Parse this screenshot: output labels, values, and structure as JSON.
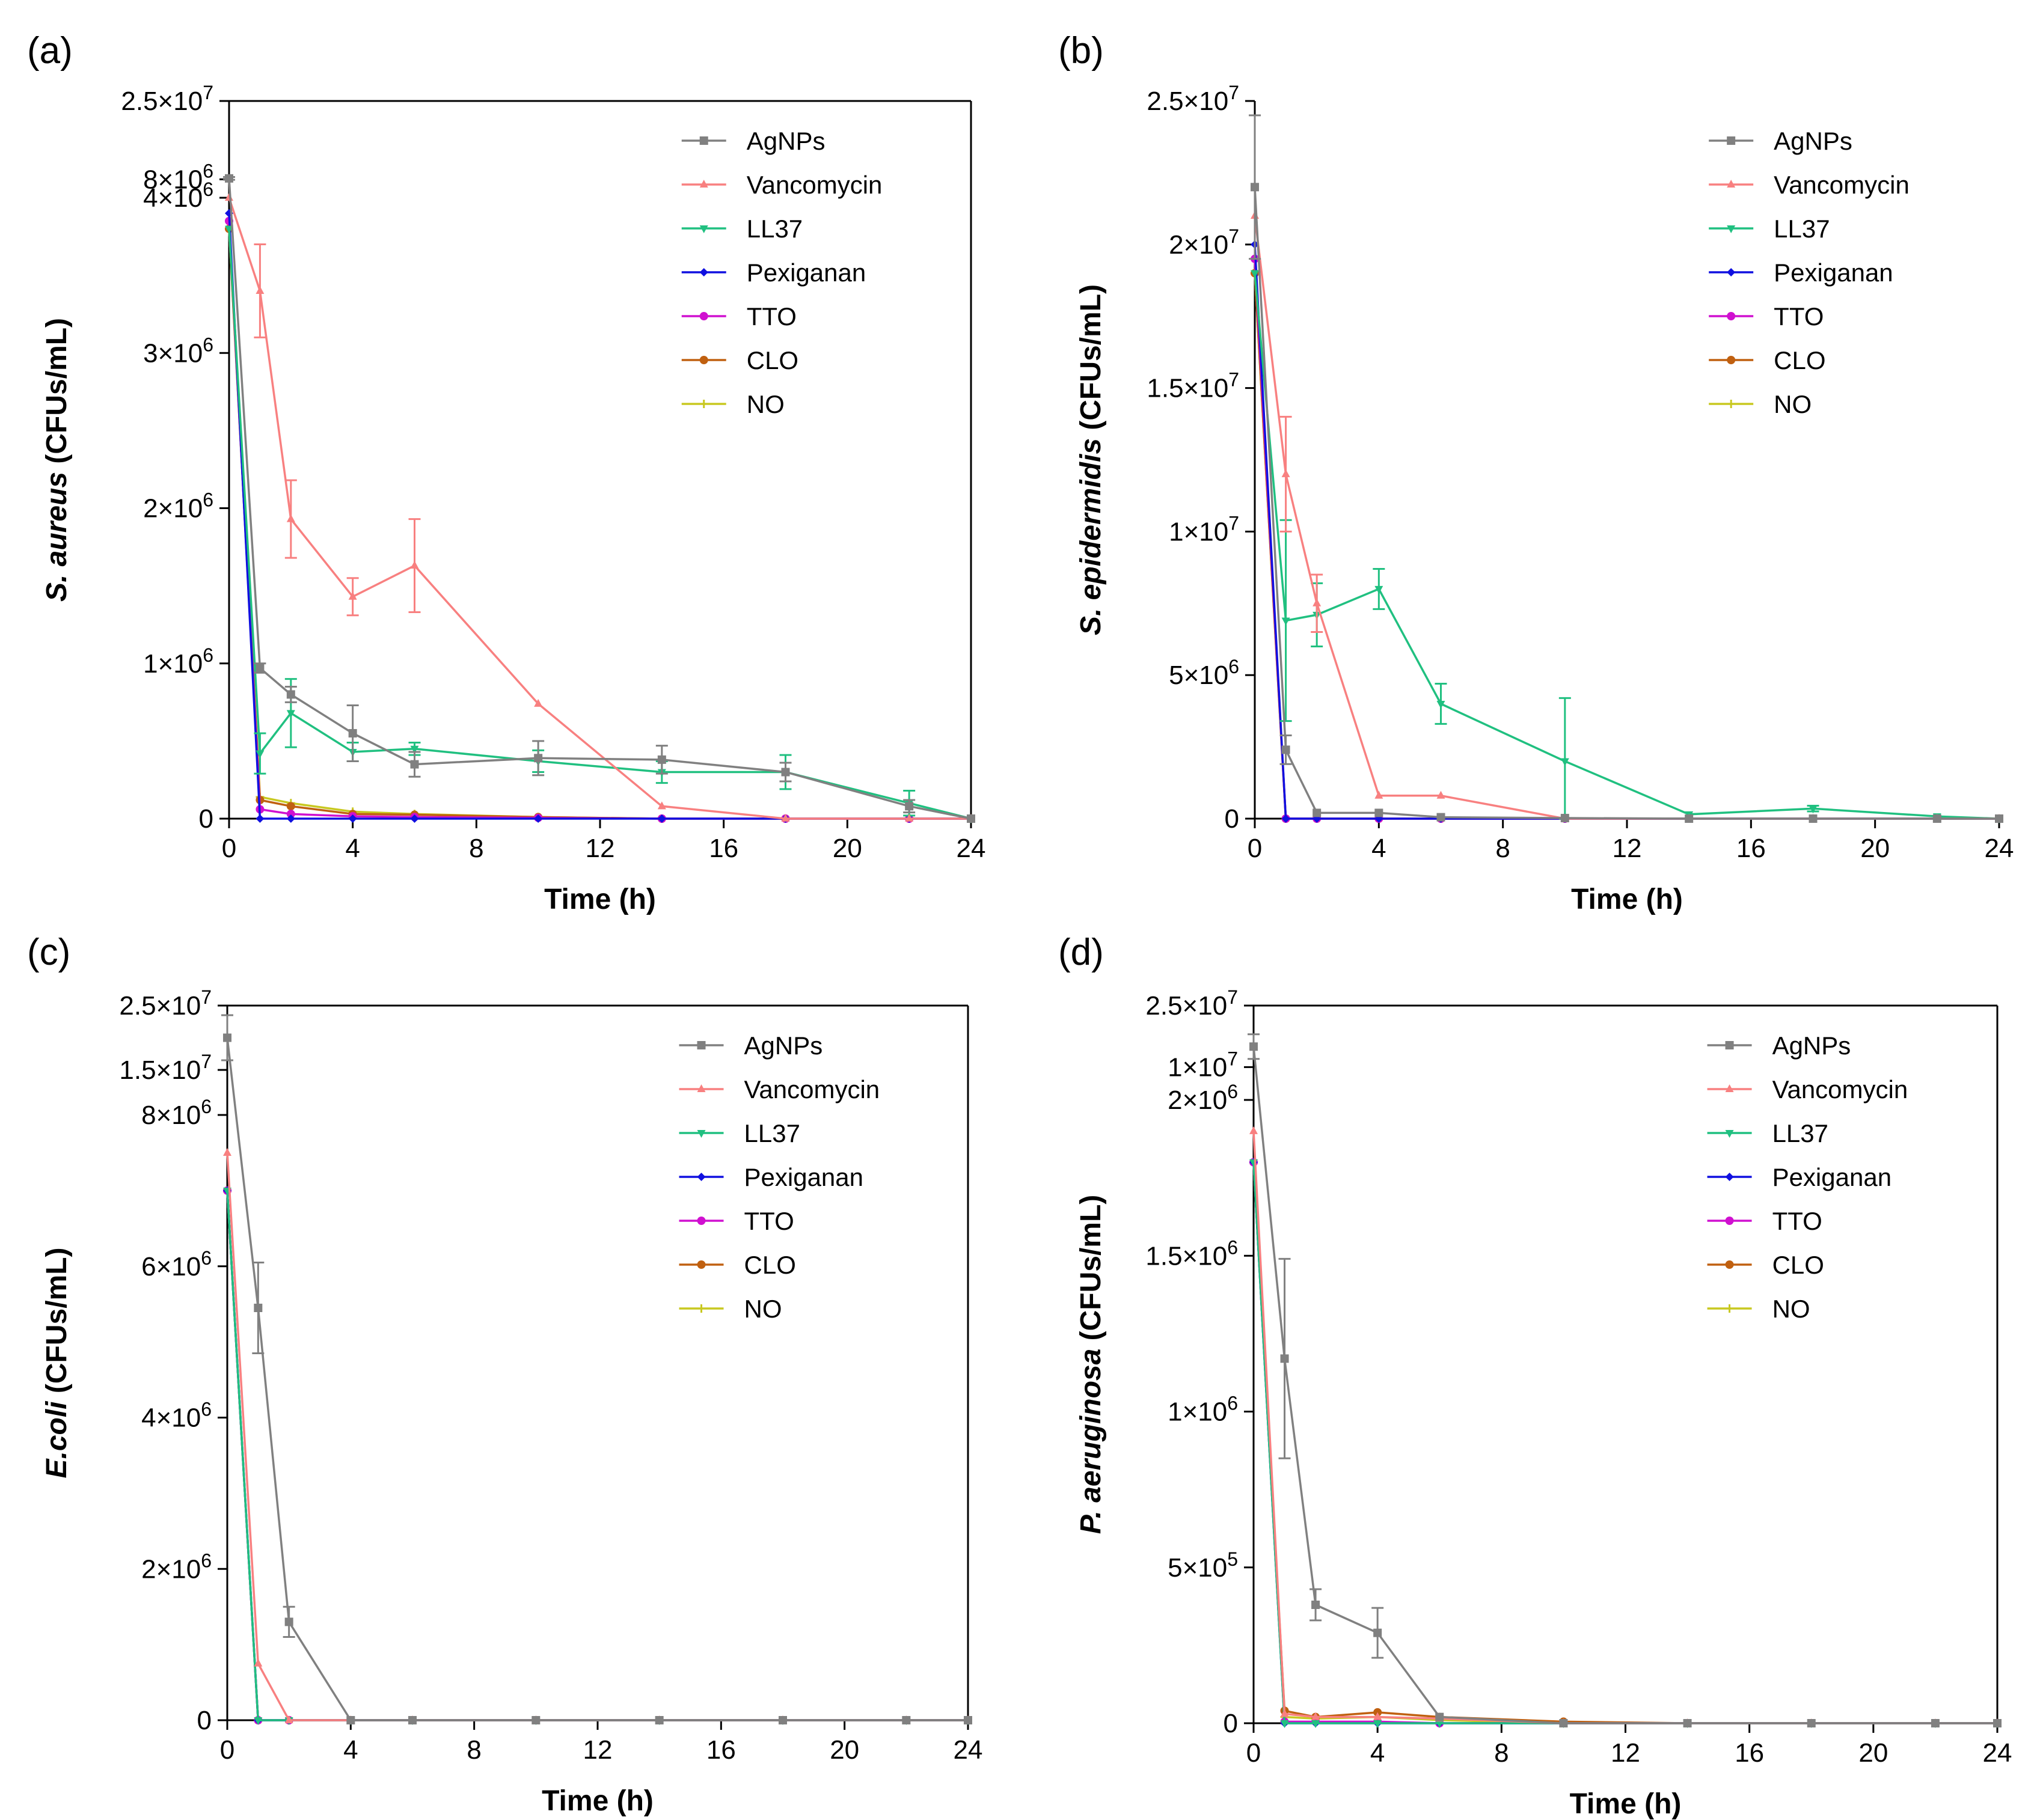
{
  "figure": {
    "series_names": [
      "AgNPs",
      "Vancomycin",
      "LL37",
      "Pexiganan",
      "TTO",
      "CLO",
      "NO"
    ],
    "series_colors": [
      "#808080",
      "#f88080",
      "#20c080",
      "#1010e0",
      "#d010d0",
      "#c06010",
      "#c8c820"
    ],
    "series_markers": [
      "square",
      "triangle",
      "triangle-down",
      "diamond",
      "circle",
      "circle",
      "star"
    ]
  },
  "chart_data": [
    {
      "panel": "(a)",
      "type": "line",
      "title": "",
      "xlabel": "Time (h)",
      "ylabel_italic": "S. aureus",
      "ylabel_rest": " (CFUs/mL)",
      "xlim": [
        0,
        24
      ],
      "xticks": [
        "0",
        "4",
        "8",
        "12",
        "16",
        "20",
        "24"
      ],
      "ylim": [
        0,
        4000000
      ],
      "break": {
        "upper_range": [
          4000000,
          25000000
        ],
        "upper_ticks": [
          {
            "mant": "8",
            "exp": "6",
            "value": 8000000
          },
          {
            "mant": "2.5",
            "exp": "7",
            "value": 25000000
          }
        ]
      },
      "yticks": [
        {
          "mant": "",
          "exp": "",
          "label": "0",
          "value": 0
        },
        {
          "mant": "1",
          "exp": "6",
          "value": 1000000
        },
        {
          "mant": "2",
          "exp": "6",
          "value": 2000000
        },
        {
          "mant": "3",
          "exp": "6",
          "value": 3000000
        },
        {
          "mant": "4",
          "exp": "6",
          "value": 4000000
        }
      ],
      "legend": "top-right",
      "series": [
        {
          "name": "AgNPs",
          "x": [
            0,
            1,
            2,
            4,
            6,
            10,
            14,
            18,
            22,
            24
          ],
          "y": [
            8200000,
            970000,
            800000,
            550000,
            350000,
            390000,
            380000,
            300000,
            80000,
            0
          ],
          "err": [
            300000,
            30000,
            50000,
            180000,
            80000,
            110000,
            90000,
            60000,
            40000,
            0
          ]
        },
        {
          "name": "Vancomycin",
          "x": [
            0,
            1,
            2,
            4,
            6,
            10,
            14,
            18,
            22,
            24
          ],
          "y": [
            4000000,
            3400000,
            1930000,
            1430000,
            1630000,
            740000,
            80000,
            0,
            0,
            0
          ],
          "err": [
            0,
            300000,
            250000,
            120000,
            300000,
            0,
            0,
            0,
            0,
            0
          ]
        },
        {
          "name": "LL37",
          "x": [
            0,
            1,
            2,
            4,
            6,
            10,
            14,
            18,
            22,
            24
          ],
          "y": [
            3800000,
            420000,
            680000,
            430000,
            450000,
            370000,
            300000,
            300000,
            100000,
            0
          ],
          "err": [
            0,
            130000,
            220000,
            60000,
            40000,
            70000,
            70000,
            110000,
            80000,
            0
          ]
        },
        {
          "name": "Pexiganan",
          "x": [
            0,
            1,
            2,
            4,
            6,
            10,
            14,
            18,
            22,
            24
          ],
          "y": [
            3900000,
            0,
            0,
            0,
            0,
            0,
            0,
            0,
            0,
            0
          ],
          "err": []
        },
        {
          "name": "TTO",
          "x": [
            0,
            1,
            2,
            4,
            6,
            10,
            14,
            18,
            22,
            24
          ],
          "y": [
            3850000,
            60000,
            30000,
            15000,
            10000,
            5000,
            0,
            0,
            0,
            0
          ],
          "err": []
        },
        {
          "name": "CLO",
          "x": [
            0,
            1,
            2,
            4,
            6,
            10,
            14,
            18,
            22,
            24
          ],
          "y": [
            3800000,
            120000,
            80000,
            30000,
            25000,
            10000,
            0,
            0,
            0,
            0
          ],
          "err": []
        },
        {
          "name": "NO",
          "x": [
            0,
            1,
            2,
            4,
            6,
            10,
            14,
            18,
            22,
            24
          ],
          "y": [
            3800000,
            140000,
            100000,
            45000,
            30000,
            10000,
            0,
            0,
            0,
            0
          ],
          "err": []
        }
      ]
    },
    {
      "panel": "(b)",
      "type": "line",
      "title": "",
      "xlabel": "Time (h)",
      "ylabel_italic": "S. epidermidis",
      "ylabel_rest": " (CFUs/mL)",
      "xlim": [
        0,
        24
      ],
      "xticks": [
        "0",
        "4",
        "8",
        "12",
        "16",
        "20",
        "24"
      ],
      "ylim": [
        0,
        25000000
      ],
      "break": null,
      "yticks": [
        {
          "mant": "",
          "exp": "",
          "label": "0",
          "value": 0
        },
        {
          "mant": "5",
          "exp": "6",
          "value": 5000000
        },
        {
          "mant": "1",
          "exp": "7",
          "value": 10000000
        },
        {
          "mant": "1.5",
          "exp": "7",
          "value": 15000000
        },
        {
          "mant": "2",
          "exp": "7",
          "value": 20000000
        },
        {
          "mant": "2.5",
          "exp": "7",
          "value": 25000000
        }
      ],
      "legend": "top-right",
      "series": [
        {
          "name": "AgNPs",
          "x": [
            0,
            1,
            2,
            4,
            6,
            10,
            14,
            18,
            22,
            24
          ],
          "y": [
            22000000,
            2400000,
            200000,
            200000,
            50000,
            20000,
            0,
            0,
            0,
            0
          ],
          "err": [
            2500000,
            500000,
            0,
            0,
            0,
            0,
            0,
            0,
            0,
            0
          ]
        },
        {
          "name": "Vancomycin",
          "x": [
            0,
            1,
            2,
            4,
            6,
            10,
            14,
            18,
            22,
            24
          ],
          "y": [
            21000000,
            12000000,
            7500000,
            800000,
            800000,
            0,
            0,
            0,
            0,
            0
          ],
          "err": [
            0,
            2000000,
            1000000,
            0,
            0,
            0,
            0,
            0,
            0,
            0
          ]
        },
        {
          "name": "LL37",
          "x": [
            0,
            1,
            2,
            4,
            6,
            10,
            14,
            18,
            22,
            24
          ],
          "y": [
            19000000,
            6900000,
            7100000,
            8000000,
            4000000,
            2000000,
            150000,
            350000,
            80000,
            0
          ],
          "err": [
            0,
            3500000,
            1100000,
            700000,
            700000,
            2200000,
            0,
            100000,
            0,
            0
          ]
        },
        {
          "name": "Pexiganan",
          "x": [
            0,
            1,
            2,
            4,
            6,
            10,
            14,
            18,
            22,
            24
          ],
          "y": [
            20000000,
            0,
            0,
            0,
            0,
            0,
            0,
            0,
            0,
            0
          ],
          "err": []
        },
        {
          "name": "TTO",
          "x": [
            0,
            1,
            2,
            4,
            6,
            10,
            14,
            18,
            22,
            24
          ],
          "y": [
            19500000,
            0,
            0,
            0,
            0,
            0,
            0,
            0,
            0,
            0
          ],
          "err": []
        },
        {
          "name": "CLO",
          "x": [
            0,
            1,
            2,
            4,
            6,
            10,
            14,
            18,
            22,
            24
          ],
          "y": [
            19000000,
            0,
            0,
            0,
            0,
            0,
            0,
            0,
            0,
            0
          ],
          "err": []
        },
        {
          "name": "NO",
          "x": [
            0,
            1,
            2,
            4,
            6,
            10,
            14,
            18,
            22,
            24
          ],
          "y": [
            19000000,
            0,
            0,
            0,
            0,
            0,
            0,
            0,
            0,
            0
          ],
          "err": []
        }
      ]
    },
    {
      "panel": "(c)",
      "type": "line",
      "title": "",
      "xlabel": "Time (h)",
      "ylabel_italic": "E.coli",
      "ylabel_rest": " (CFUs/mL)",
      "xlim": [
        0,
        24
      ],
      "xticks": [
        "0",
        "4",
        "8",
        "12",
        "16",
        "20",
        "24"
      ],
      "ylim": [
        0,
        8000000
      ],
      "break": {
        "upper_range": [
          8000000,
          25000000
        ],
        "upper_ticks": [
          {
            "mant": "1.5",
            "exp": "7",
            "value": 15000000
          },
          {
            "mant": "2.5",
            "exp": "7",
            "value": 25000000
          }
        ]
      },
      "yticks": [
        {
          "mant": "",
          "exp": "",
          "label": "0",
          "value": 0
        },
        {
          "mant": "2",
          "exp": "6",
          "value": 2000000
        },
        {
          "mant": "4",
          "exp": "6",
          "value": 4000000
        },
        {
          "mant": "6",
          "exp": "6",
          "value": 6000000
        },
        {
          "mant": "8",
          "exp": "6",
          "value": 8000000
        }
      ],
      "legend": "top-right",
      "series": [
        {
          "name": "AgNPs",
          "x": [
            0,
            1,
            2,
            4,
            6,
            10,
            14,
            18,
            22,
            24
          ],
          "y": [
            20000000,
            5450000,
            1300000,
            0,
            0,
            0,
            0,
            0,
            0,
            0
          ],
          "err": [
            3500000,
            600000,
            200000,
            0,
            0,
            0,
            0,
            0,
            0,
            0
          ]
        },
        {
          "name": "Vancomycin",
          "x": [
            0,
            1,
            2,
            4,
            6,
            10,
            14,
            18,
            22,
            24
          ],
          "y": [
            7500000,
            750000,
            0,
            0,
            0,
            0,
            0,
            0,
            0,
            0
          ],
          "err": []
        },
        {
          "name": "LL37",
          "x": [
            0,
            1,
            2,
            4,
            6,
            10,
            14,
            18,
            22,
            24
          ],
          "y": [
            7000000,
            0,
            0,
            0,
            0,
            0,
            0,
            0,
            0,
            0
          ],
          "err": []
        },
        {
          "name": "Pexiganan",
          "x": [
            0,
            1,
            2,
            4,
            6,
            10,
            14,
            18,
            22,
            24
          ],
          "y": [
            7000000,
            0,
            0,
            0,
            0,
            0,
            0,
            0,
            0,
            0
          ],
          "err": []
        },
        {
          "name": "TTO",
          "x": [
            0,
            1,
            2,
            4,
            6,
            10,
            14,
            18,
            22,
            24
          ],
          "y": [
            7000000,
            0,
            0,
            0,
            0,
            0,
            0,
            0,
            0,
            0
          ],
          "err": []
        },
        {
          "name": "CLO",
          "x": [
            0,
            1,
            2,
            4,
            6,
            10,
            14,
            18,
            22,
            24
          ],
          "y": [
            7000000,
            0,
            0,
            0,
            0,
            0,
            0,
            0,
            0,
            0
          ],
          "err": []
        },
        {
          "name": "NO",
          "x": [
            0,
            1,
            2,
            4,
            6,
            10,
            14,
            18,
            22,
            24
          ],
          "y": [
            7000000,
            0,
            0,
            0,
            0,
            0,
            0,
            0,
            0,
            0
          ],
          "err": []
        }
      ]
    },
    {
      "panel": "(d)",
      "type": "line",
      "title": "",
      "xlabel": "Time (h)",
      "ylabel_italic": "P. aeruginosa",
      "ylabel_rest": " (CFUs/mL)",
      "xlim": [
        0,
        24
      ],
      "xticks": [
        "0",
        "4",
        "8",
        "12",
        "16",
        "20",
        "24"
      ],
      "ylim": [
        0,
        2000000
      ],
      "break": {
        "upper_range": [
          2000000,
          25000000
        ],
        "upper_ticks": [
          {
            "mant": "1",
            "exp": "7",
            "value": 10000000
          },
          {
            "mant": "2.5",
            "exp": "7",
            "value": 25000000
          }
        ]
      },
      "yticks": [
        {
          "mant": "",
          "exp": "",
          "label": "0",
          "value": 0
        },
        {
          "mant": "5",
          "exp": "5",
          "value": 500000
        },
        {
          "mant": "1",
          "exp": "6",
          "value": 1000000
        },
        {
          "mant": "1.5",
          "exp": "6",
          "value": 1500000
        },
        {
          "mant": "2",
          "exp": "6",
          "value": 2000000
        }
      ],
      "legend": "top-right",
      "series": [
        {
          "name": "AgNPs",
          "x": [
            0,
            1,
            2,
            4,
            6,
            10,
            14,
            18,
            22,
            24
          ],
          "y": [
            15000000,
            1170000,
            380000,
            290000,
            20000,
            0,
            0,
            0,
            0,
            0
          ],
          "err": [
            3000000,
            320000,
            50000,
            80000,
            0,
            0,
            0,
            0,
            0,
            0
          ]
        },
        {
          "name": "Vancomycin",
          "x": [
            0,
            1,
            2,
            4,
            6,
            10,
            14,
            18,
            22,
            24
          ],
          "y": [
            1900000,
            30000,
            20000,
            20000,
            15000,
            0,
            0,
            0,
            0,
            0
          ],
          "err": []
        },
        {
          "name": "LL37",
          "x": [
            0,
            1,
            2,
            4,
            6,
            10,
            14,
            18,
            22,
            24
          ],
          "y": [
            1800000,
            0,
            0,
            0,
            0,
            0,
            0,
            0,
            0,
            0
          ],
          "err": []
        },
        {
          "name": "Pexiganan",
          "x": [
            0,
            1,
            2,
            4,
            6,
            10,
            14,
            18,
            22,
            24
          ],
          "y": [
            1800000,
            0,
            0,
            0,
            0,
            0,
            0,
            0,
            0,
            0
          ],
          "err": []
        },
        {
          "name": "TTO",
          "x": [
            0,
            1,
            2,
            4,
            6,
            10,
            14,
            18,
            22,
            24
          ],
          "y": [
            1800000,
            5000,
            5000,
            5000,
            0,
            0,
            0,
            0,
            0,
            0
          ],
          "err": []
        },
        {
          "name": "CLO",
          "x": [
            0,
            1,
            2,
            4,
            6,
            10,
            14,
            18,
            22,
            24
          ],
          "y": [
            1800000,
            40000,
            20000,
            35000,
            20000,
            5000,
            0,
            0,
            0,
            0
          ],
          "err": []
        },
        {
          "name": "NO",
          "x": [
            0,
            1,
            2,
            4,
            6,
            10,
            14,
            18,
            22,
            24
          ],
          "y": [
            1800000,
            20000,
            15000,
            20000,
            10000,
            0,
            0,
            0,
            0,
            0
          ],
          "err": []
        }
      ]
    }
  ]
}
